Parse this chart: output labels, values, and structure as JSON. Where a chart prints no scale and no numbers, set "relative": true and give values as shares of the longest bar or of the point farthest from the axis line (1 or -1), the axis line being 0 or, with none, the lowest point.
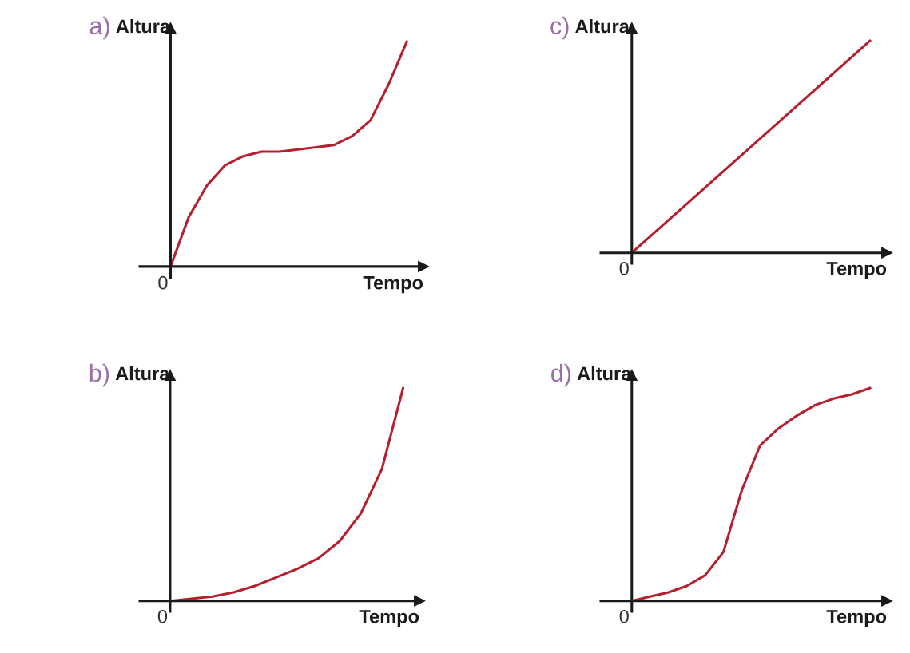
{
  "chart_data": [
    {
      "type": "line",
      "title": "a)",
      "ylabel": "Altura",
      "xlabel": "Tempo",
      "relative": true,
      "annotations": [
        "0"
      ],
      "categories": [
        null,
        null,
        null,
        null,
        null,
        null,
        null,
        null,
        null,
        null,
        null,
        null,
        null,
        null
      ],
      "series": [
        {
          "color": "#b5202e",
          "values": [
            0,
            0.22,
            0.36,
            0.45,
            0.49,
            0.51,
            0.51,
            0.52,
            0.53,
            0.54,
            0.58,
            0.65,
            0.81,
            1
          ]
        }
      ]
    },
    {
      "type": "line",
      "title": "c)",
      "ylabel": "Altura",
      "xlabel": "Tempo",
      "relative": true,
      "annotations": [
        "0"
      ],
      "categories": [
        null,
        null,
        null
      ],
      "series": [
        {
          "color": "#b5202e",
          "values": [
            0,
            0.5,
            1
          ]
        }
      ]
    },
    {
      "type": "line",
      "title": "b)",
      "ylabel": "Altura",
      "xlabel": "Tempo",
      "relative": true,
      "annotations": [
        "0"
      ],
      "categories": [
        null,
        null,
        null,
        null,
        null,
        null,
        null,
        null,
        null,
        null,
        null,
        null
      ],
      "series": [
        {
          "color": "#b5202e",
          "values": [
            0,
            0.01,
            0.02,
            0.04,
            0.07,
            0.11,
            0.15,
            0.2,
            0.28,
            0.41,
            0.62,
            1
          ]
        }
      ]
    },
    {
      "type": "line",
      "title": "d)",
      "ylabel": "Altura",
      "xlabel": "Tempo",
      "relative": true,
      "annotations": [
        "0"
      ],
      "categories": [
        null,
        null,
        null,
        null,
        null,
        null,
        null,
        null,
        null,
        null,
        null,
        null,
        null,
        null
      ],
      "series": [
        {
          "color": "#b5202e",
          "values": [
            0,
            0.02,
            0.04,
            0.07,
            0.12,
            0.23,
            0.52,
            0.73,
            0.81,
            0.87,
            0.92,
            0.95,
            0.97,
            1
          ]
        }
      ]
    }
  ]
}
